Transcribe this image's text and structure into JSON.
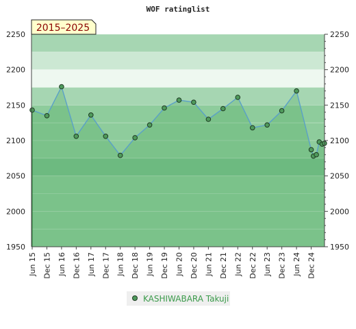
{
  "chart_data": {
    "type": "area",
    "title": "WOF ratinglist",
    "period_badge": "2015–2025",
    "ylim": [
      1950,
      2250
    ],
    "yticks": [
      1950,
      2000,
      2050,
      2100,
      2150,
      2200,
      2250
    ],
    "y_tick_labels": [
      "1950",
      "2000",
      "2050",
      "2100",
      "2150",
      "2200",
      "2250"
    ],
    "x_tick_labels": [
      "Jun 15",
      "Dec 15",
      "Jun 16",
      "Dec 16",
      "Jun 17",
      "Dec 17",
      "Jun 18",
      "Dec 18",
      "Jun 19",
      "Dec 19",
      "Jun 20",
      "Dec 20",
      "Jun 21",
      "Dec 21",
      "Jun 22",
      "Dec 22",
      "Jun 23",
      "Dec 23",
      "Jun 24",
      "Dec 24"
    ],
    "grid": true,
    "legend_placement": "bottom-center",
    "series": [
      {
        "name": "KASHIWABARA Takuji",
        "color": "#4f9a5c",
        "line_color": "#5aa0c8",
        "points": [
          {
            "t": 0.0,
            "value": 2143
          },
          {
            "t": 1.0,
            "value": 2135
          },
          {
            "t": 2.0,
            "value": 2176
          },
          {
            "t": 3.0,
            "value": 2106
          },
          {
            "t": 4.0,
            "value": 2136
          },
          {
            "t": 5.0,
            "value": 2106
          },
          {
            "t": 6.0,
            "value": 2079
          },
          {
            "t": 7.0,
            "value": 2104
          },
          {
            "t": 8.0,
            "value": 2122
          },
          {
            "t": 9.0,
            "value": 2146
          },
          {
            "t": 10.0,
            "value": 2157
          },
          {
            "t": 11.0,
            "value": 2154
          },
          {
            "t": 12.0,
            "value": 2130
          },
          {
            "t": 13.0,
            "value": 2145
          },
          {
            "t": 14.0,
            "value": 2161
          },
          {
            "t": 15.0,
            "value": 2118
          },
          {
            "t": 16.0,
            "value": 2122
          },
          {
            "t": 17.0,
            "value": 2142
          },
          {
            "t": 18.0,
            "value": 2170
          },
          {
            "t": 19.0,
            "value": 2087
          },
          {
            "t": 19.15,
            "value": 2078
          },
          {
            "t": 19.35,
            "value": 2080
          },
          {
            "t": 19.55,
            "value": 2098
          },
          {
            "t": 19.75,
            "value": 2095
          },
          {
            "t": 19.9,
            "value": 2096
          }
        ]
      }
    ],
    "colors": {
      "band_dark": "#7bc18e",
      "band_mid": "#8ecc9c",
      "band_light": "#a6d6b2",
      "band_lighter": "#cce8d3",
      "band_lightest": "#eef8f0",
      "badge_fill": "#ffffcc",
      "badge_text": "#8b0000"
    }
  }
}
